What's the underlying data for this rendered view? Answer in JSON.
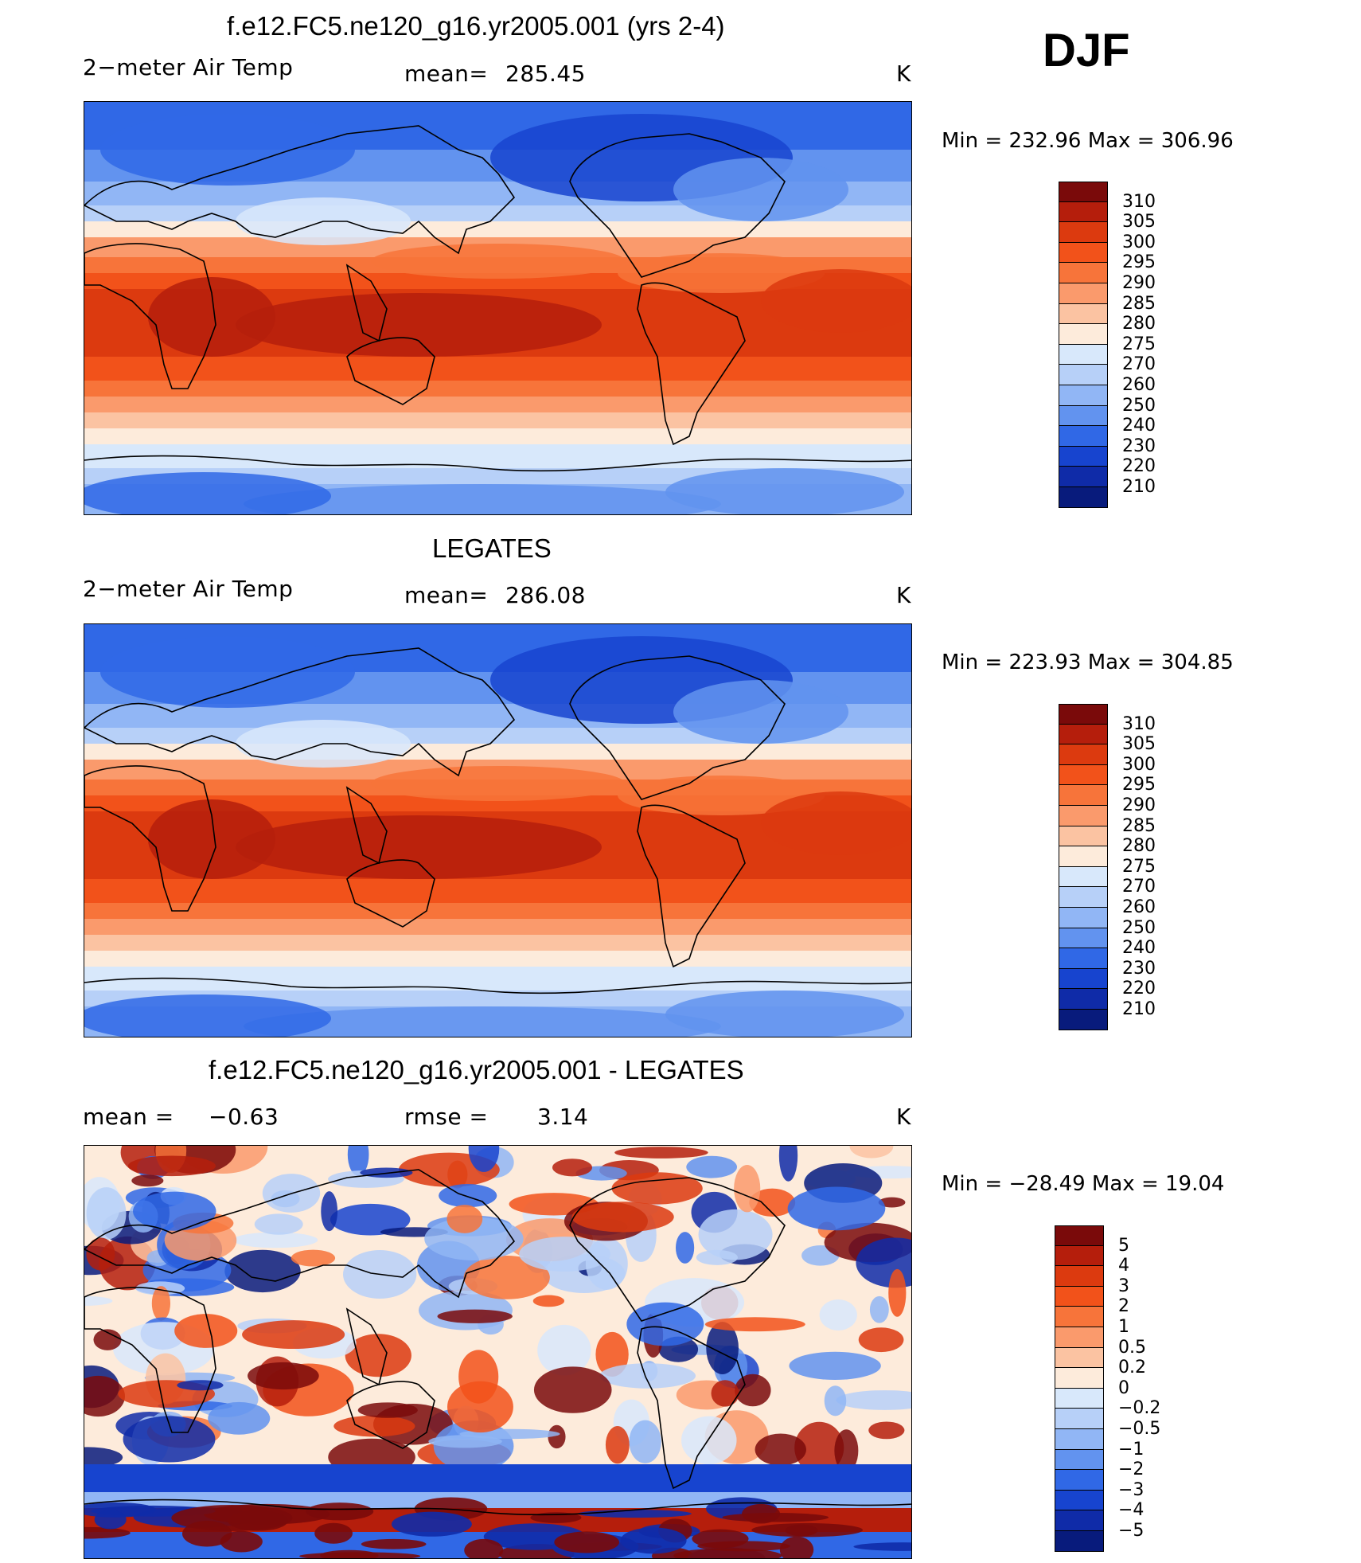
{
  "season": "DJF",
  "units": "K",
  "panels": [
    {
      "title": "f.e12.FC5.ne120_g16.yr2005.001 (yrs 2-4)",
      "left_label": "2−meter Air Temp",
      "stat_label": "mean=",
      "stat_value": "285.45",
      "units": "K",
      "min_max": "Min  =  232.96  Max  =  306.96",
      "kind": "abs"
    },
    {
      "title": "LEGATES",
      "left_label": "2−meter Air Temp",
      "stat_label": "mean=",
      "stat_value": "286.08",
      "units": "K",
      "min_max": "Min  =  223.93  Max  =  304.85",
      "kind": "abs"
    },
    {
      "title": "f.e12.FC5.ne120_g16.yr2005.001 - LEGATES",
      "left_label": "mean  =",
      "left_value": "−0.63",
      "stat_label": "rmse  =",
      "stat_value": "3.14",
      "units": "K",
      "min_max": "Min  =  −28.49  Max  =    19.04",
      "kind": "diff"
    }
  ],
  "colorbars": {
    "abs": {
      "levels": [
        "310",
        "305",
        "300",
        "295",
        "290",
        "285",
        "280",
        "275",
        "270",
        "260",
        "250",
        "240",
        "230",
        "220",
        "210"
      ],
      "colors": [
        "#7a0a0a",
        "#b51e0c",
        "#dc3a0f",
        "#f2521a",
        "#f7743a",
        "#fa9a6c",
        "#fbc3a2",
        "#fdebdb",
        "#d8e8fb",
        "#b7d0f8",
        "#91b6f5",
        "#6293ef",
        "#3068e6",
        "#1744cf",
        "#0f2ba8",
        "#081b7c"
      ]
    },
    "diff": {
      "levels": [
        "5",
        "4",
        "3",
        "2",
        "1",
        "0.5",
        "0.2",
        "0",
        "−0.2",
        "−0.5",
        "−1",
        "−2",
        "−3",
        "−4",
        "−5"
      ],
      "colors": [
        "#7a0a0a",
        "#b51e0c",
        "#dc3a0f",
        "#f2521a",
        "#f7743a",
        "#fa9a6c",
        "#fbc3a2",
        "#fdebdb",
        "#d8e8fb",
        "#b7d0f8",
        "#91b6f5",
        "#6293ef",
        "#3068e6",
        "#1744cf",
        "#0f2ba8",
        "#081b7c"
      ]
    }
  },
  "chart_data": {
    "type": "heatmap",
    "projection": "cylindrical equidistant, centered on Pacific",
    "panels": [
      {
        "name": "model",
        "mean": 285.45,
        "min": 232.96,
        "max": 306.96,
        "units": "K"
      },
      {
        "name": "LEGATES",
        "mean": 286.08,
        "min": 223.93,
        "max": 304.85,
        "units": "K"
      },
      {
        "name": "model - LEGATES",
        "mean": -0.63,
        "rmse": 3.14,
        "min": -28.49,
        "max": 19.04,
        "units": "K"
      }
    ]
  }
}
